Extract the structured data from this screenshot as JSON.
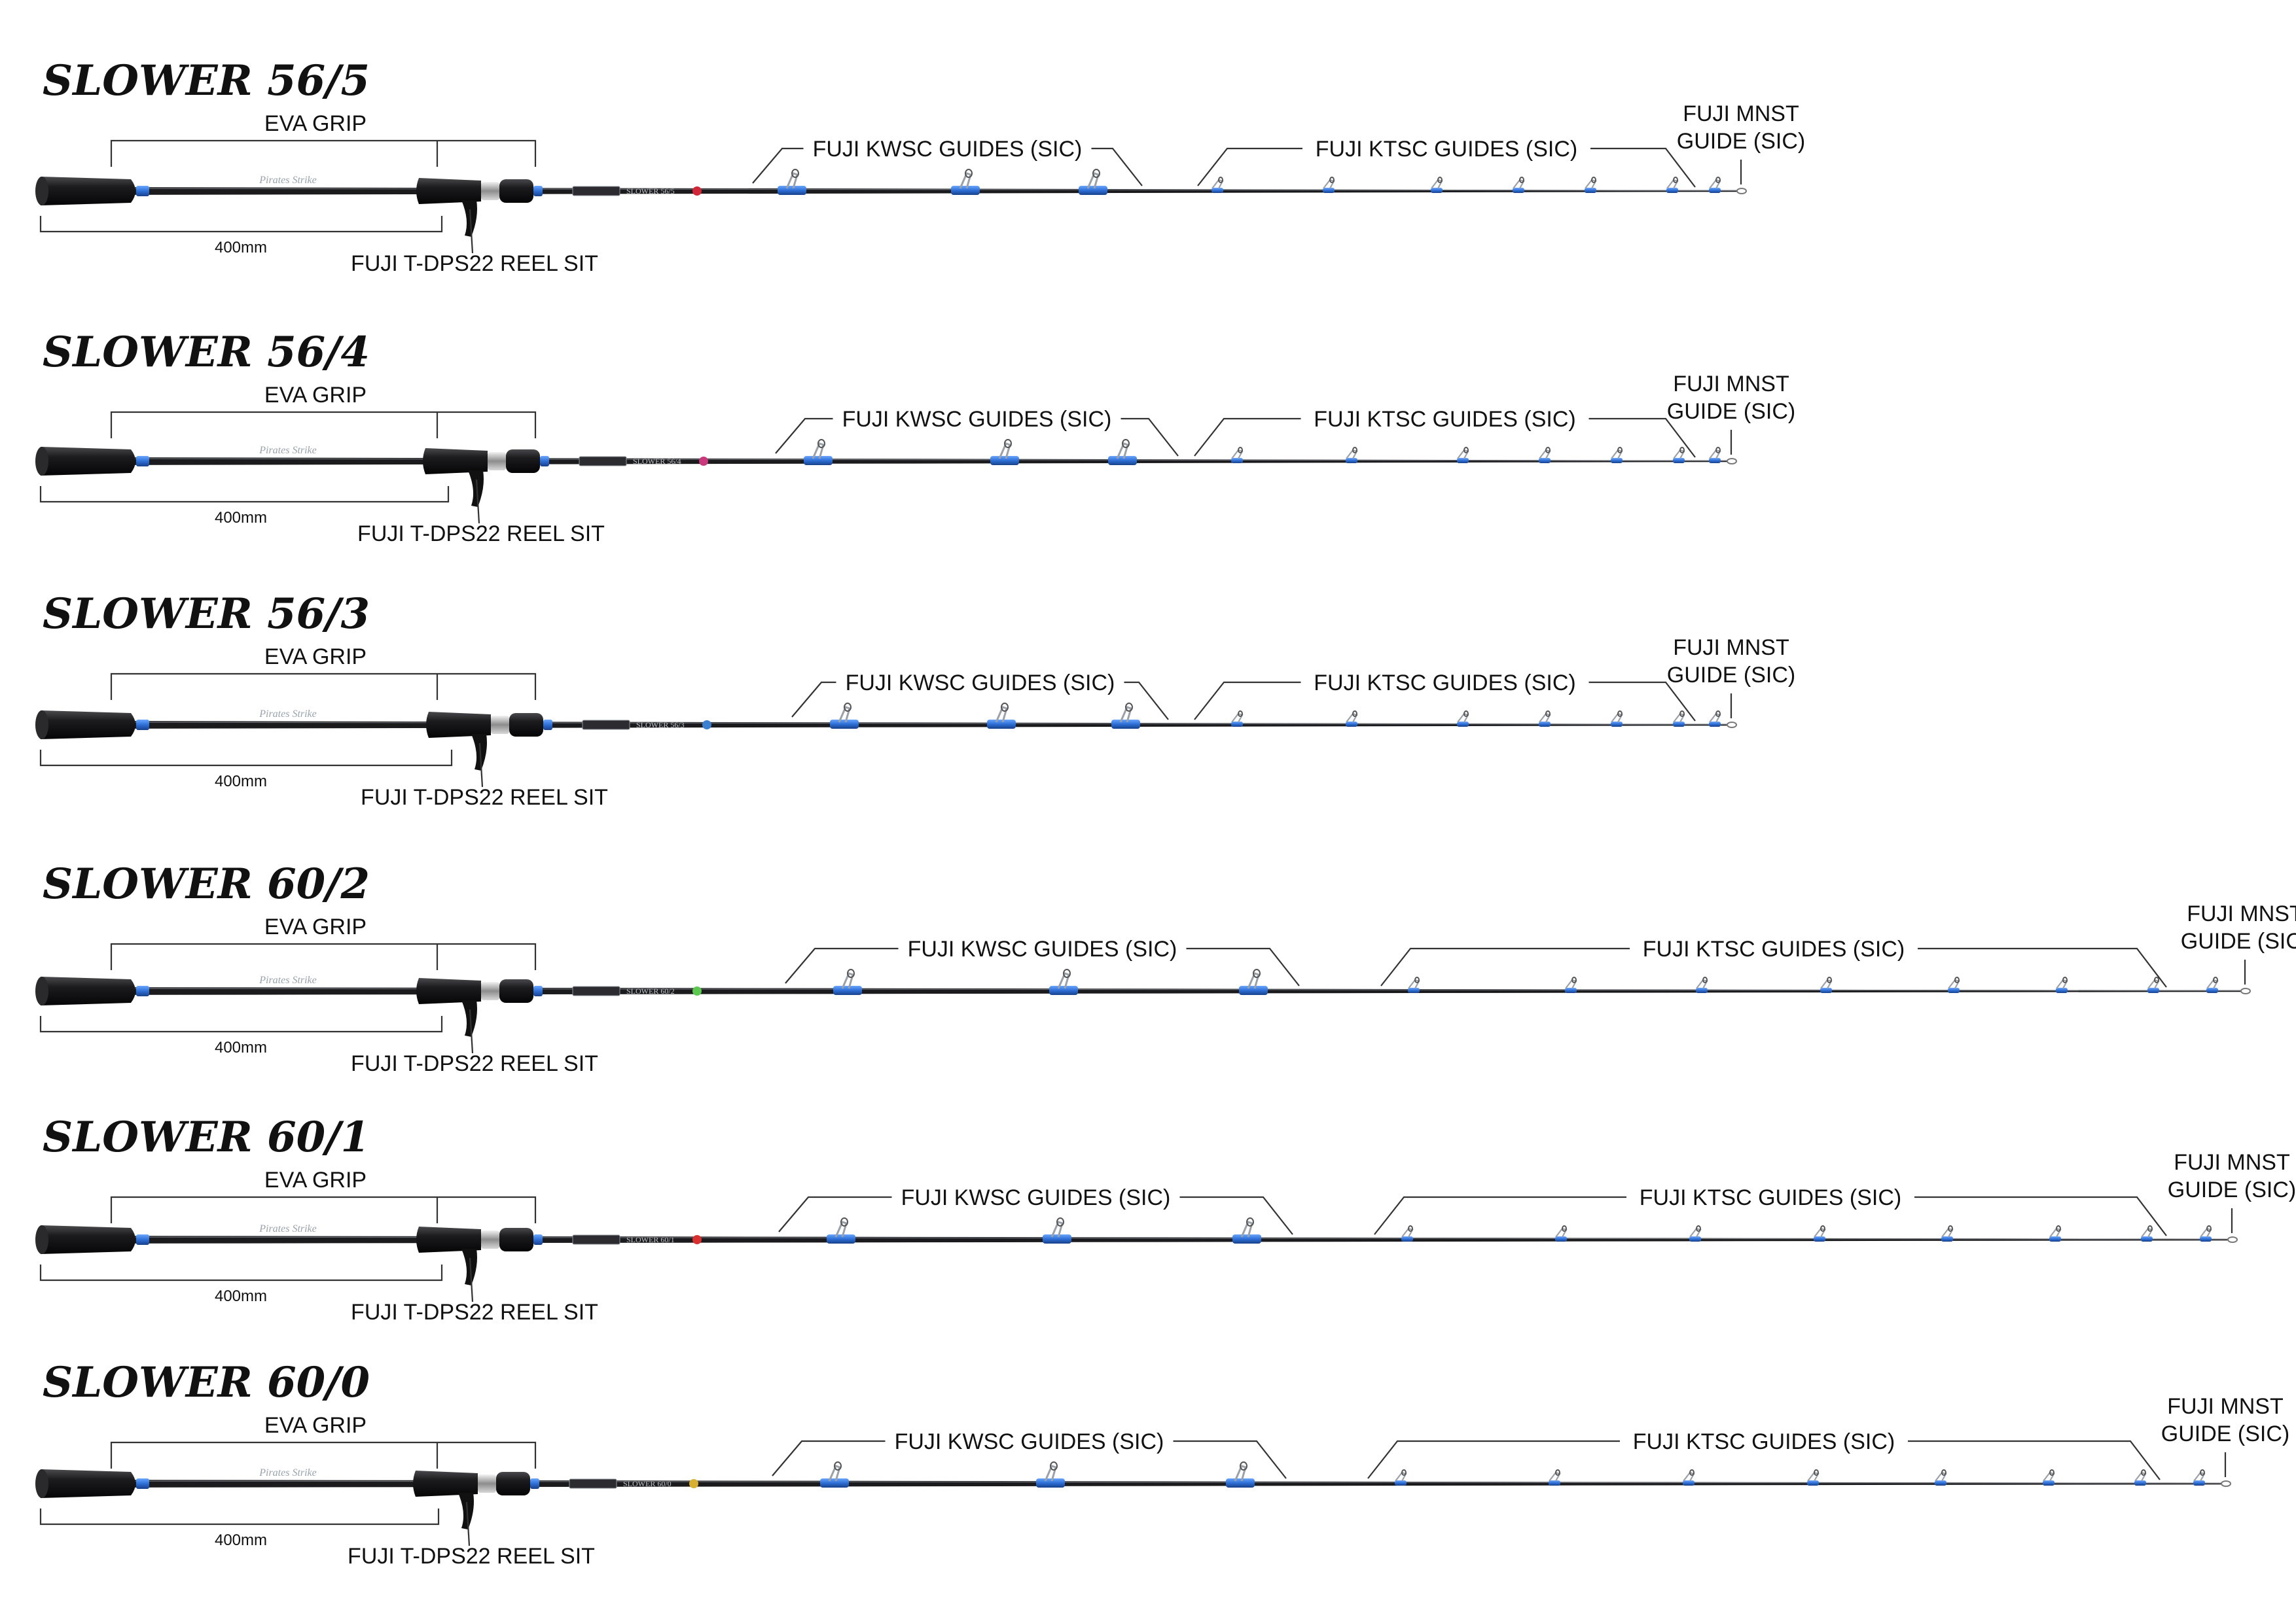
{
  "colors": {
    "background": "#ffffff",
    "blank": "#1b1b1d",
    "grip": "#101012",
    "accent_blue": "#2e6fd6",
    "guide_frame": "#9aa1a8",
    "leader": "#333333"
  },
  "rods": [
    {
      "title": "SLOWER 56/5",
      "model_text": "SLOWER 56/5",
      "eva_grip": "EVA GRIP",
      "dimension": "400mm",
      "reel_seat": "FUJI T-DPS22 REEL SIT",
      "kwsc": "FUJI KWSC GUIDES (SIC)",
      "ktsc": "FUJI KTSC GUIDES (SIC)",
      "mnst": [
        "FUJI MNST",
        "GUIDE (SIC)"
      ],
      "brand": "Pirates Strike",
      "badge_color": "#d02838"
    },
    {
      "title": "SLOWER 56/4",
      "model_text": "SLOWER 56/4",
      "eva_grip": "EVA GRIP",
      "dimension": "400mm",
      "reel_seat": "FUJI T-DPS22 REEL SIT",
      "kwsc": "FUJI KWSC GUIDES (SIC)",
      "ktsc": "FUJI KTSC GUIDES (SIC)",
      "mnst": [
        "FUJI MNST",
        "GUIDE (SIC)"
      ],
      "brand": "Pirates Strike",
      "badge_color": "#c8387a"
    },
    {
      "title": "SLOWER 56/3",
      "model_text": "SLOWER 56/3",
      "eva_grip": "EVA GRIP",
      "dimension": "400mm",
      "reel_seat": "FUJI T-DPS22 REEL SIT",
      "kwsc": "FUJI KWSC GUIDES (SIC)",
      "ktsc": "FUJI KTSC GUIDES (SIC)",
      "mnst": [
        "FUJI MNST",
        "GUIDE (SIC)"
      ],
      "brand": "Pirates Strike",
      "badge_color": "#3a7fd0"
    },
    {
      "title": "SLOWER 60/2",
      "model_text": "SLOWER 60/2",
      "eva_grip": "EVA GRIP",
      "dimension": "400mm",
      "reel_seat": "FUJI T-DPS22 REEL SIT",
      "kwsc": "FUJI KWSC GUIDES (SIC)",
      "ktsc": "FUJI KTSC GUIDES (SIC)",
      "mnst": [
        "FUJI MNST",
        "GUIDE (SIC)"
      ],
      "brand": "Pirates Strike",
      "badge_color": "#5cc850"
    },
    {
      "title": "SLOWER 60/1",
      "model_text": "SLOWER 60/1",
      "eva_grip": "EVA GRIP",
      "dimension": "400mm",
      "reel_seat": "FUJI T-DPS22 REEL SIT",
      "kwsc": "FUJI KWSC GUIDES (SIC)",
      "ktsc": "FUJI KTSC GUIDES (SIC)",
      "mnst": [
        "FUJI MNST",
        "GUIDE (SIC)"
      ],
      "brand": "Pirates Strike",
      "badge_color": "#d83030"
    },
    {
      "title": "SLOWER 60/0",
      "model_text": "SLOWER 60/0",
      "eva_grip": "EVA GRIP",
      "dimension": "400mm",
      "reel_seat": "FUJI T-DPS22 REEL SIT",
      "kwsc": "FUJI KWSC GUIDES (SIC)",
      "ktsc": "FUJI KTSC GUIDES (SIC)",
      "mnst": [
        "FUJI MNST",
        "GUIDE (SIC)"
      ],
      "brand": "Pirates Strike",
      "badge_color": "#d8b030"
    }
  ]
}
